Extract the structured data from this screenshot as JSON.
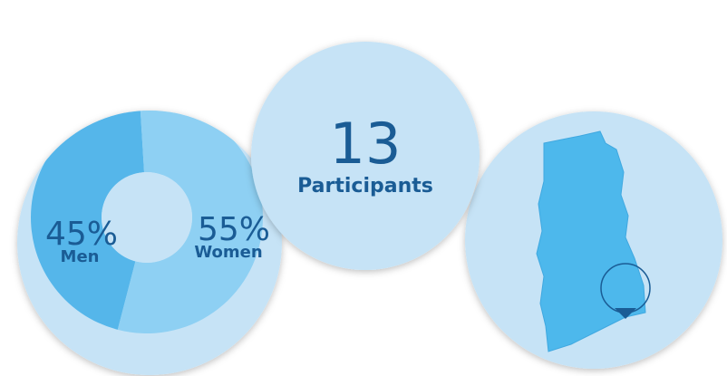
{
  "gender": {
    "categories": [
      "Men",
      "Women"
    ],
    "values": [
      45,
      55
    ],
    "value_labels": [
      "45%",
      "55%"
    ],
    "colors": [
      "#55b6ea",
      "#8ed0f3"
    ]
  },
  "participants": {
    "count": 13,
    "label": "Participants"
  }
}
